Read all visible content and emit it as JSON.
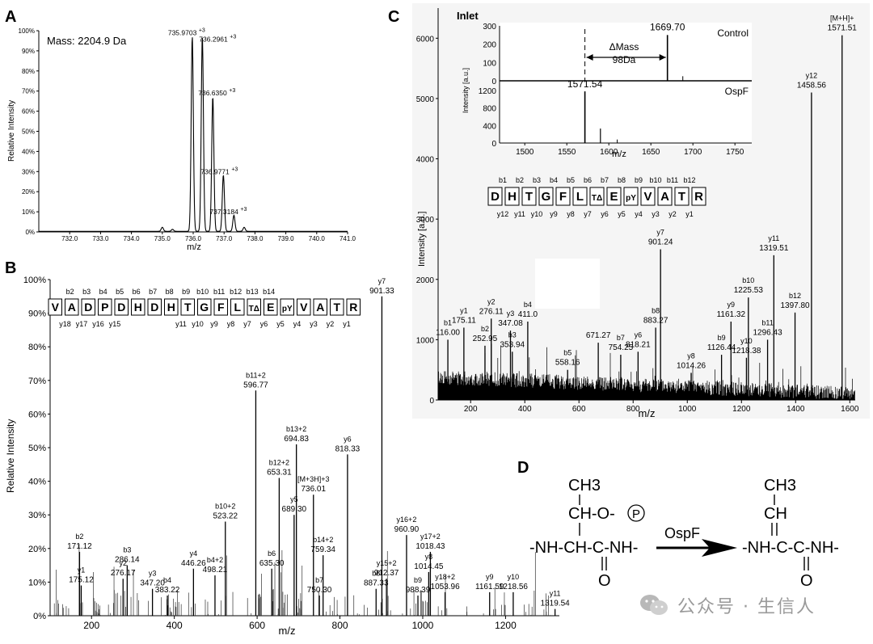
{
  "panels": {
    "A": {
      "letter": "A",
      "mass_note": "Mass: 2204.9 Da",
      "ylabel": "Relative Intensity",
      "xlabel": "m/z",
      "xlim": [
        731,
        741
      ],
      "ylim": [
        0,
        100
      ],
      "xticks": [
        "732.0",
        "733.0",
        "734.0",
        "735.0",
        "736.0",
        "737.0",
        "738.0",
        "739.0",
        "740.0",
        "741.0"
      ],
      "yticks": [
        "0%",
        "10%",
        "20%",
        "30%",
        "40%",
        "50%",
        "60%",
        "70%",
        "80%",
        "90%",
        "100%"
      ],
      "chart_data": {
        "type": "line",
        "title": "",
        "xlabel": "m/z",
        "ylabel": "Relative Intensity",
        "peaks": [
          {
            "mz": 735.0,
            "rel": 2,
            "label": ""
          },
          {
            "mz": 735.33,
            "rel": 1,
            "label": ""
          },
          {
            "mz": 735.97,
            "rel": 97,
            "label": "735.9703",
            "charge": "+3"
          },
          {
            "mz": 736.2961,
            "rel": 97,
            "label": "736.2961",
            "charge": "+3"
          },
          {
            "mz": 736.635,
            "rel": 67,
            "label": "736.6350",
            "charge": "+3"
          },
          {
            "mz": 736.9771,
            "rel": 28,
            "label": "736.9771",
            "charge": "+3"
          },
          {
            "mz": 737.3184,
            "rel": 8,
            "label": "737.3184",
            "charge": "+3"
          },
          {
            "mz": 737.65,
            "rel": 2,
            "label": ""
          }
        ]
      }
    },
    "B": {
      "letter": "B",
      "ylabel": "Relative Intensity",
      "xlabel": "m/z",
      "xlim": [
        100,
        1330
      ],
      "ylim": [
        0,
        100
      ],
      "xticks": [
        "200",
        "400",
        "600",
        "800",
        "1000",
        "1200"
      ],
      "yticks": [
        "0%",
        "10%",
        "20%",
        "30%",
        "40%",
        "50%",
        "60%",
        "70%",
        "80%",
        "90%",
        "100%"
      ],
      "sequence": [
        "V",
        "A",
        "D",
        "P",
        "D",
        "H",
        "D",
        "H",
        "T",
        "G",
        "F",
        "L",
        "TΔ",
        "E",
        "pY",
        "V",
        "A",
        "T",
        "R"
      ],
      "b_ions": [
        "b2",
        "b3",
        "b4",
        "b5",
        "b6",
        "b7",
        "b8",
        "b9",
        "b10",
        "b11",
        "b12",
        "b13",
        "b14"
      ],
      "y_ions": [
        "y18",
        "y17",
        "y16",
        "y15",
        "y11",
        "y10",
        "y9",
        "y8",
        "y7",
        "y6",
        "y5",
        "y4",
        "y3",
        "y2",
        "y1"
      ],
      "chart_data": {
        "type": "bar",
        "xlabel": "m/z",
        "ylabel": "Relative Intensity",
        "peaks": [
          {
            "mz": 171.12,
            "rel": 19,
            "ion": "b2",
            "label": "171.12"
          },
          {
            "mz": 175.12,
            "rel": 9,
            "ion": "y1",
            "label": "175.12"
          },
          {
            "mz": 276.17,
            "rel": 11,
            "ion": "y2",
            "label": "276.17"
          },
          {
            "mz": 286.14,
            "rel": 15,
            "ion": "b3",
            "label": "286.14"
          },
          {
            "mz": 347.2,
            "rel": 8,
            "ion": "y3",
            "label": "347.20"
          },
          {
            "mz": 383.22,
            "rel": 6,
            "ion": "b4",
            "label": "383.22"
          },
          {
            "mz": 446.26,
            "rel": 14,
            "ion": "y4",
            "label": "446.26"
          },
          {
            "mz": 498.21,
            "rel": 12,
            "ion": "b4+2",
            "label": "498.21"
          },
          {
            "mz": 523.22,
            "rel": 28,
            "ion": "b10+2",
            "label": "523.22"
          },
          {
            "mz": 596.77,
            "rel": 67,
            "ion": "b11+2",
            "label": "596.77"
          },
          {
            "mz": 635.3,
            "rel": 14,
            "ion": "b6",
            "label": "635.30"
          },
          {
            "mz": 653.31,
            "rel": 41,
            "ion": "b12+2",
            "label": "653.31"
          },
          {
            "mz": 689.3,
            "rel": 30,
            "ion": "y5",
            "label": "689.30"
          },
          {
            "mz": 694.83,
            "rel": 51,
            "ion": "b13+2",
            "label": "694.83"
          },
          {
            "mz": 736.01,
            "rel": 36,
            "ion": "[M+3H]+3",
            "label": "736.01"
          },
          {
            "mz": 750.3,
            "rel": 6,
            "ion": "b7",
            "label": "750.30"
          },
          {
            "mz": 759.34,
            "rel": 18,
            "ion": "b14+2",
            "label": "759.34"
          },
          {
            "mz": 818.33,
            "rel": 48,
            "ion": "y6",
            "label": "818.33"
          },
          {
            "mz": 887.33,
            "rel": 8,
            "ion": "b8",
            "label": "887.33"
          },
          {
            "mz": 901.33,
            "rel": 95,
            "ion": "y7",
            "label": "901.33"
          },
          {
            "mz": 912.37,
            "rel": 11,
            "ion": "y15+2",
            "label": "912.37"
          },
          {
            "mz": 960.9,
            "rel": 24,
            "ion": "y16+2",
            "label": "960.90"
          },
          {
            "mz": 988.39,
            "rel": 6,
            "ion": "b9",
            "label": "988.39"
          },
          {
            "mz": 1014.45,
            "rel": 13,
            "ion": "y8",
            "label": "1014.45"
          },
          {
            "mz": 1018.43,
            "rel": 19,
            "ion": "y17+2",
            "label": "1018.43"
          },
          {
            "mz": 1053.96,
            "rel": 7,
            "ion": "y18+2",
            "label": "1053.96"
          },
          {
            "mz": 1161.59,
            "rel": 7,
            "ion": "y9",
            "label": "1161.59"
          },
          {
            "mz": 1218.56,
            "rel": 7,
            "ion": "y10",
            "label": "1218.56"
          },
          {
            "mz": 1319.54,
            "rel": 2,
            "ion": "y11",
            "label": "1319.54"
          }
        ]
      }
    },
    "C": {
      "letter": "C",
      "ylabel": "Intensity [a.u.]",
      "xlabel": "m/z",
      "xlim": [
        80,
        1620
      ],
      "ylim": [
        0,
        6500
      ],
      "xticks": [
        "200",
        "400",
        "600",
        "800",
        "1000",
        "1200",
        "1400",
        "1600"
      ],
      "yticks": [
        "0",
        "1000",
        "2000",
        "3000",
        "4000",
        "5000",
        "6000"
      ],
      "sequence": [
        "D",
        "H",
        "T",
        "G",
        "F",
        "L",
        "TΔ",
        "E",
        "pY",
        "V",
        "A",
        "T",
        "R"
      ],
      "b_ions": [
        "b1",
        "b2",
        "b3",
        "b4",
        "b5",
        "b6",
        "b7",
        "b8",
        "b9",
        "b10",
        "b11",
        "b12"
      ],
      "y_ions": [
        "y12",
        "y11",
        "y10",
        "y9",
        "y8",
        "y7",
        "y6",
        "y5",
        "y4",
        "y3",
        "y2",
        "y1"
      ],
      "chart_data": {
        "type": "bar",
        "xlabel": "m/z",
        "ylabel": "Intensity [a.u.]",
        "peaks": [
          {
            "mz": 116.0,
            "val": 1000,
            "ion": "b1",
            "label": "116.00"
          },
          {
            "mz": 175.11,
            "val": 1200,
            "ion": "y1",
            "label": "175.11"
          },
          {
            "mz": 252.95,
            "val": 900,
            "ion": "b2",
            "label": "252.95"
          },
          {
            "mz": 276.11,
            "val": 1350,
            "ion": "y2",
            "label": "276.11"
          },
          {
            "mz": 347.08,
            "val": 1150,
            "ion": "y3",
            "label": "347.08"
          },
          {
            "mz": 353.94,
            "val": 800,
            "ion": "b3",
            "label": "353.94"
          },
          {
            "mz": 411.0,
            "val": 1300,
            "ion": "b4",
            "label": "411.0"
          },
          {
            "mz": 558.16,
            "val": 500,
            "ion": "b5",
            "label": "558.16"
          },
          {
            "mz": 671.27,
            "val": 950,
            "ion": "",
            "label": "671.27"
          },
          {
            "mz": 754.25,
            "val": 750,
            "ion": "b7",
            "label": "754.25"
          },
          {
            "mz": 818.21,
            "val": 800,
            "ion": "y6",
            "label": "818.21"
          },
          {
            "mz": 883.27,
            "val": 1200,
            "ion": "b8",
            "label": "883.27"
          },
          {
            "mz": 901.24,
            "val": 2500,
            "ion": "y7",
            "label": "901.24"
          },
          {
            "mz": 1014.26,
            "val": 450,
            "ion": "y8",
            "label": "1014.26"
          },
          {
            "mz": 1126.44,
            "val": 750,
            "ion": "b9",
            "label": "1126.44"
          },
          {
            "mz": 1161.32,
            "val": 1300,
            "ion": "y9",
            "label": "1161.32"
          },
          {
            "mz": 1218.38,
            "val": 700,
            "ion": "y10",
            "label": "1218.38"
          },
          {
            "mz": 1225.53,
            "val": 1700,
            "ion": "b10",
            "label": "1225.53"
          },
          {
            "mz": 1296.43,
            "val": 1000,
            "ion": "b11",
            "label": "1296.43"
          },
          {
            "mz": 1319.51,
            "val": 2400,
            "ion": "y11",
            "label": "1319.51"
          },
          {
            "mz": 1397.8,
            "val": 1450,
            "ion": "b12",
            "label": "1397.80"
          },
          {
            "mz": 1458.56,
            "val": 5100,
            "ion": "y12",
            "label": "1458.56"
          },
          {
            "mz": 1571.51,
            "val": 6050,
            "ion": "[M+H]+",
            "label": "1571.51"
          }
        ]
      },
      "inset": {
        "title": "Inlet",
        "top_label": "Control",
        "bottom_label": "OspF",
        "ylabel": "Intensity [a.u.]",
        "xlabel": "m/z",
        "delta_label": "ΔMass",
        "delta_value": "98Da",
        "xlim": [
          1470,
          1770
        ],
        "xticks": [
          "1500",
          "1550",
          "1600",
          "1650",
          "1700",
          "1750"
        ],
        "top_yticks": [
          "0",
          "100",
          "200",
          "300"
        ],
        "bottom_yticks": [
          "0",
          "400",
          "800",
          "1200"
        ],
        "control_peak": {
          "mz": 1669.7,
          "val": 250,
          "label": "1669.70"
        },
        "ospf_peak": {
          "mz": 1571.54,
          "val": 1180,
          "label": "1571.54"
        }
      }
    },
    "D": {
      "letter": "D",
      "enzyme": "OspF",
      "left": {
        "top": "CH3",
        "mid": "CH-O-",
        "phos": "P",
        "backbone": "-NH-CH-C-NH-",
        "oxygen": "O"
      },
      "right": {
        "top": "CH3",
        "mid": "CH",
        "backbone": "-NH-C-C-NH-",
        "oxygen": "O"
      }
    }
  },
  "watermark": "公众号 · 生信人"
}
